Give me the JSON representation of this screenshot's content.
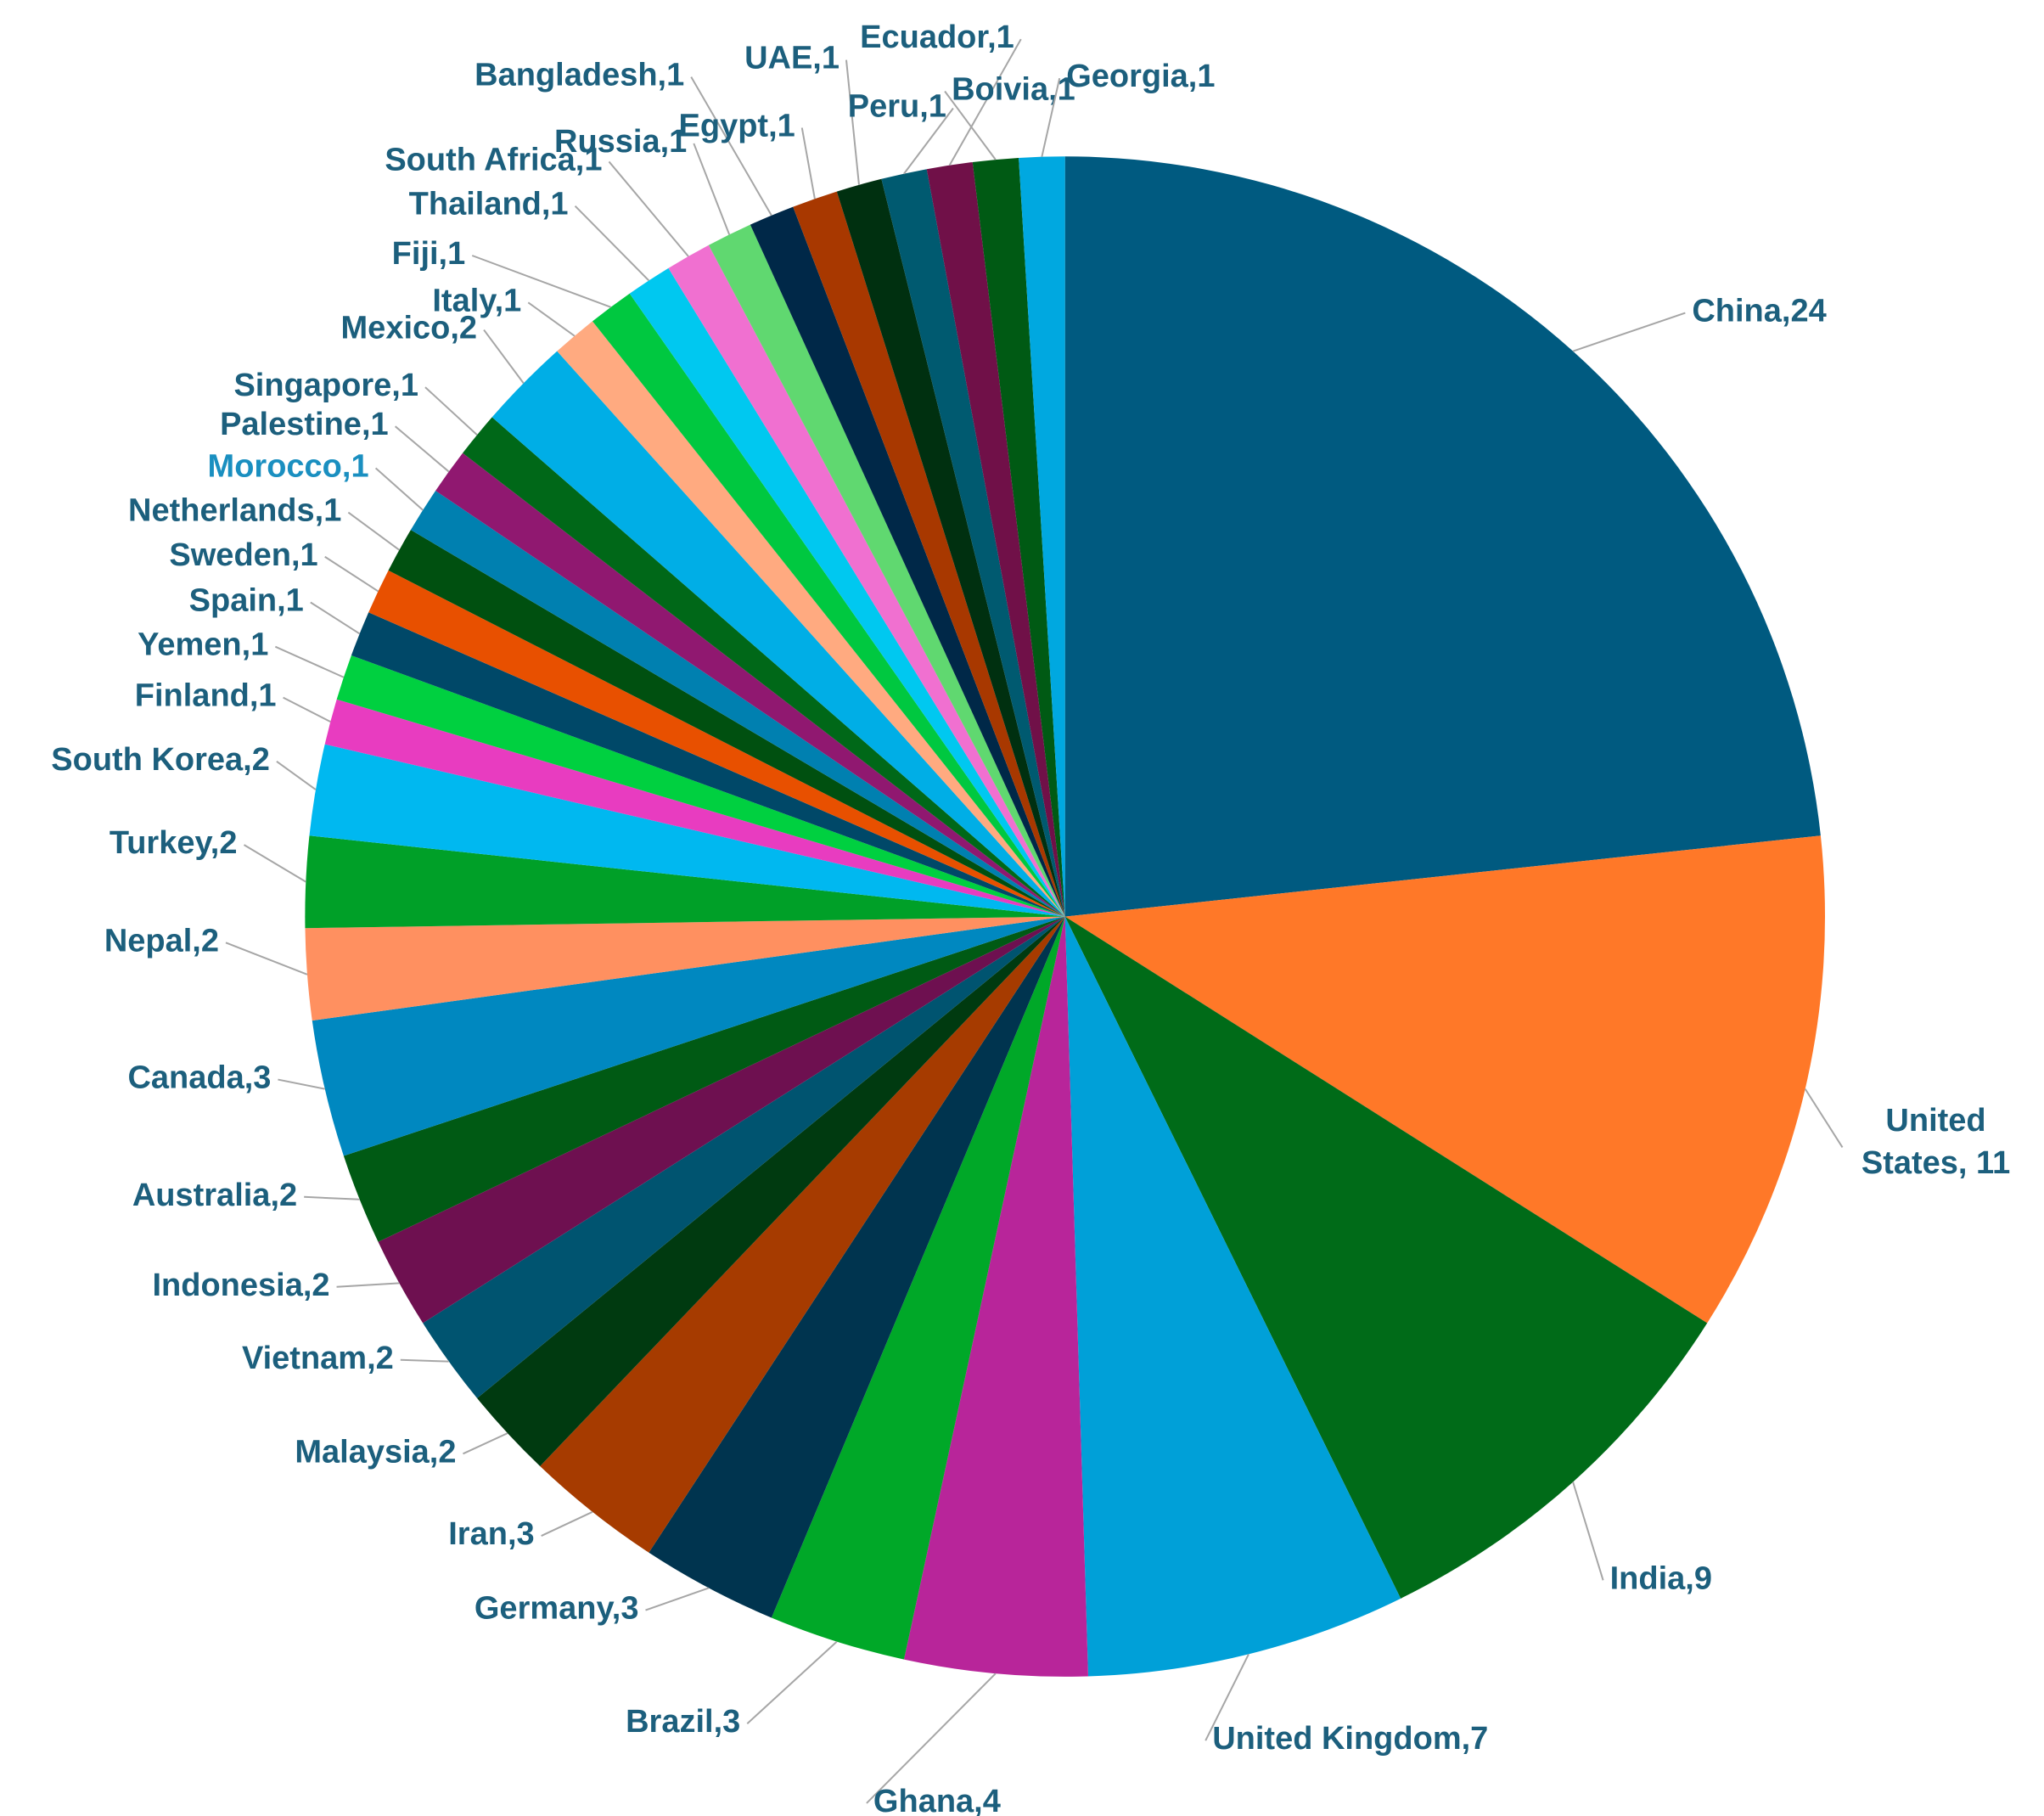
{
  "chart_data": {
    "type": "pie",
    "values": [
      24,
      11,
      9,
      7,
      4,
      3,
      3,
      3,
      2,
      2,
      2,
      2,
      3,
      2,
      2,
      2,
      1,
      1,
      1,
      1,
      1,
      1,
      1,
      1,
      2,
      1,
      1,
      1,
      1,
      1,
      1,
      1,
      1,
      1,
      1,
      1,
      1
    ],
    "value_labels": [
      "China,24",
      "United States, 11",
      "India,9",
      "United Kingdom,7",
      "Ghana,4",
      "Brazil,3",
      "Germany,3",
      "Iran,3",
      "Malaysia,2",
      "Vietnam,2",
      "Indonesia,2",
      "Australia,2",
      "Canada,3",
      "Nepal,2",
      "Turkey,2",
      "South Korea,2",
      "Finland,1",
      "Yemen,1",
      "Spain,1",
      "Sweden,1",
      "Netherlands,1",
      "Morocco,1",
      "Palestine,1",
      "Singapore,1",
      "Mexico,2",
      "Italy,1",
      "Fiji,1",
      "Thailand,1",
      "South Africa,1",
      "Russia,1",
      "Bangladesh,1",
      "Egypt,1",
      "UAE,1",
      "Peru,1",
      "Ecuador,1",
      "Boivia,1",
      "Georgia,1"
    ],
    "colors": [
      "#005a80",
      "#ff7828",
      "#006b18",
      "#00a0d8",
      "#b8259a",
      "#00a828",
      "#00344f",
      "#a63b00",
      "#003a10",
      "#005470",
      "#6e1050",
      "#005a14",
      "#0088c0",
      "#ff9060",
      "#00a028",
      "#00b8f0",
      "#e83cc0",
      "#00d040",
      "#004868",
      "#e85000",
      "#005010",
      "#0080b0",
      "#901870",
      "#006818",
      "#00aee6",
      "#ffaa80",
      "#00c840",
      "#00c8f0",
      "#f070d0",
      "#60d870",
      "#002848",
      "#a83800",
      "#003010",
      "#005a70",
      "#701048",
      "#005a14",
      "#00a8e0"
    ]
  }
}
